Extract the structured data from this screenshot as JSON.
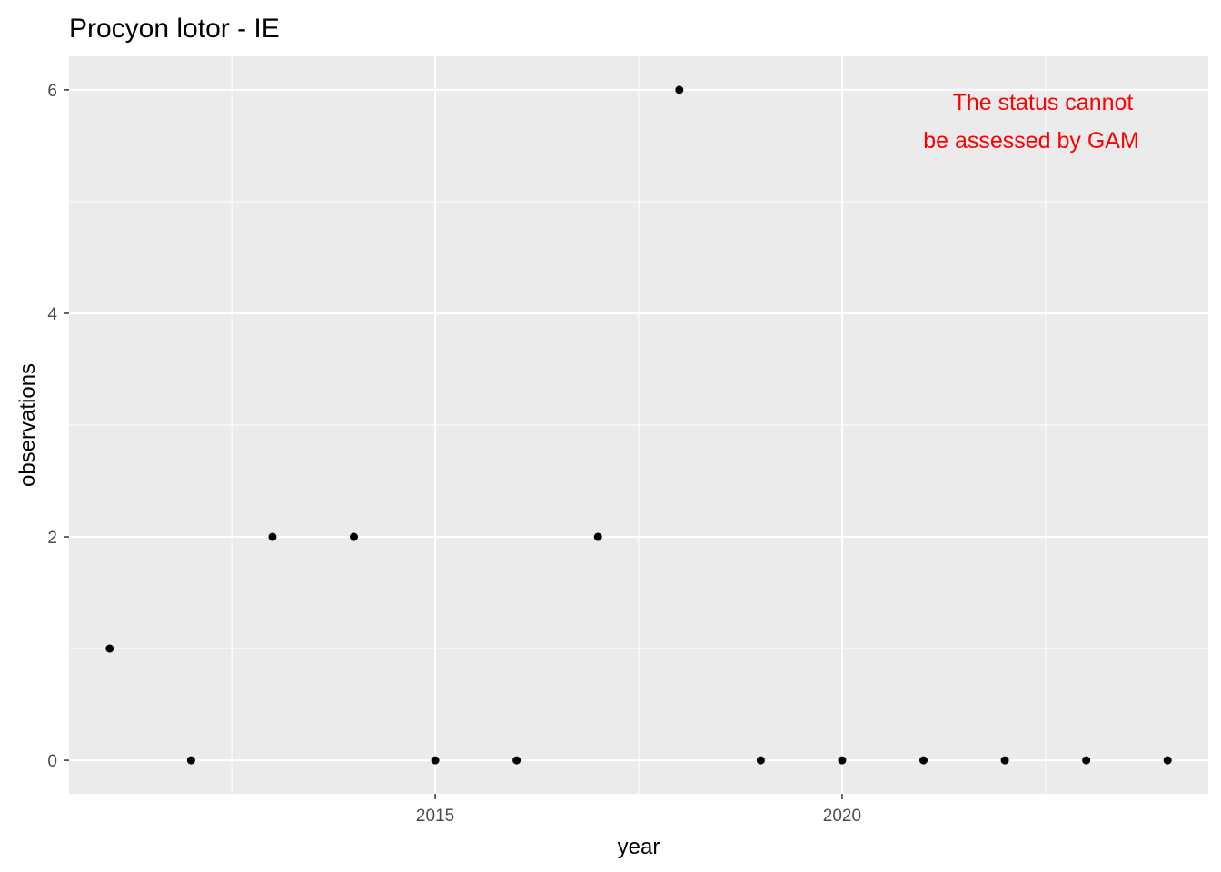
{
  "chart_data": {
    "type": "scatter",
    "title": "Procyon lotor - IE",
    "xlabel": "year",
    "ylabel": "observations",
    "x": [
      2011,
      2012,
      2013,
      2014,
      2015,
      2016,
      2017,
      2018,
      2019,
      2020,
      2021,
      2022,
      2023,
      2024
    ],
    "y": [
      1,
      0,
      2,
      2,
      0,
      0,
      2,
      6,
      0,
      0,
      0,
      0,
      0,
      0
    ],
    "xlim": [
      2010.5,
      2024.5
    ],
    "ylim": [
      -0.3,
      6.3
    ],
    "x_ticks": [
      2015,
      2020
    ],
    "x_tick_labels": [
      "2015",
      "2020"
    ],
    "x_minor_ticks": [
      2012.5,
      2017.5,
      2022.5
    ],
    "y_ticks": [
      0,
      2,
      4,
      6
    ],
    "y_tick_labels": [
      "0",
      "2",
      "4",
      "6"
    ],
    "y_minor_ticks": [
      1,
      3,
      5
    ],
    "grid": true,
    "panel_background": "#ebebeb",
    "grid_color": "#ffffff",
    "point_color": "#000000",
    "annotation": {
      "lines": [
        "The status cannot",
        "be assessed by GAM"
      ],
      "color": "#ff0000",
      "position": "top-right"
    }
  }
}
